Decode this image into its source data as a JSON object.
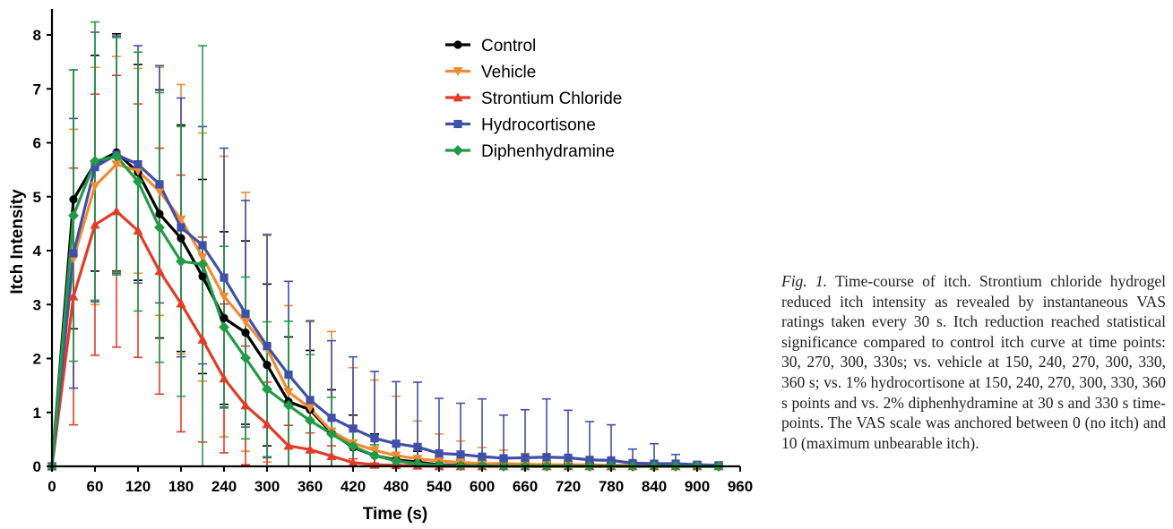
{
  "chart_data": {
    "type": "line",
    "xlabel": "Time (s)",
    "ylabel": "Itch Intensity",
    "xlim": [
      0,
      960
    ],
    "ylim": [
      0,
      8.4
    ],
    "xticks": [
      0,
      60,
      120,
      180,
      240,
      300,
      360,
      420,
      480,
      540,
      600,
      660,
      720,
      780,
      840,
      900,
      960
    ],
    "yticks": [
      0,
      1,
      2,
      3,
      4,
      5,
      6,
      7,
      8
    ],
    "grid": false,
    "legend_position": "top-center",
    "x": [
      0,
      30,
      60,
      90,
      120,
      150,
      180,
      210,
      240,
      270,
      300,
      330,
      360,
      390,
      420,
      450,
      480,
      510,
      540,
      570,
      600,
      630,
      660,
      690,
      720,
      750,
      780,
      810,
      840,
      870,
      900,
      930
    ],
    "series": [
      {
        "name": "Control",
        "color": "#000000",
        "marker": "circle",
        "values": [
          0,
          4.95,
          5.62,
          5.82,
          5.45,
          4.68,
          4.23,
          3.52,
          2.75,
          2.48,
          1.88,
          1.2,
          1.05,
          0.62,
          0.35,
          0.2,
          0.12,
          0.08,
          0.03,
          0.02,
          0.02,
          0.01,
          0.01,
          0.01,
          0.01,
          0.01,
          0.01,
          0.01,
          0.01,
          0.01,
          0,
          0
        ],
        "error": [
          0,
          2.4,
          2.0,
          2.2,
          2.0,
          2.3,
          2.1,
          1.8,
          1.6,
          1.7,
          1.5,
          1.2,
          1.1,
          0.8,
          0.6,
          0.4,
          0.3,
          0.2,
          0.12,
          0.1,
          0.08,
          0.06,
          0.05,
          0.05,
          0.05,
          0.05,
          0.05,
          0.05,
          0.05,
          0.05,
          0,
          0
        ]
      },
      {
        "name": "Vehicle",
        "color": "#F08C32",
        "marker": "triangle-down",
        "values": [
          0,
          3.85,
          5.2,
          5.6,
          5.48,
          5.1,
          4.58,
          3.88,
          3.15,
          2.68,
          2.18,
          1.38,
          1.08,
          0.65,
          0.43,
          0.3,
          0.2,
          0.14,
          0.1,
          0.07,
          0.05,
          0.05,
          0.04,
          0.03,
          0.03,
          0.03,
          0.02,
          0.02,
          0.02,
          0.01,
          0.01,
          0
        ],
        "error": [
          0,
          2.4,
          2.2,
          2.0,
          1.9,
          2.3,
          2.5,
          2.3,
          2.6,
          2.4,
          2.1,
          1.6,
          1.6,
          1.85,
          1.4,
          1.3,
          1.1,
          0.7,
          0.5,
          0.4,
          0.3,
          0.25,
          0.2,
          0.2,
          0.15,
          0.1,
          0.1,
          0.08,
          0.06,
          0.05,
          0.05,
          0
        ]
      },
      {
        "name": "Strontium Chloride",
        "color": "#E23C28",
        "marker": "triangle-up",
        "values": [
          0,
          3.15,
          4.48,
          4.73,
          4.37,
          3.62,
          3.02,
          2.35,
          1.63,
          1.13,
          0.78,
          0.38,
          0.31,
          0.19,
          0.07,
          0.03,
          0.02,
          0.01,
          0,
          0,
          0,
          0,
          0,
          0,
          0,
          0,
          0,
          0,
          0,
          0,
          0,
          0
        ],
        "error": [
          0,
          2.38,
          2.42,
          2.52,
          2.35,
          2.28,
          2.38,
          1.9,
          1.38,
          1.1,
          0.78,
          0.38,
          0.31,
          0.19,
          0.07,
          0.03,
          0.02,
          0.01,
          0,
          0,
          0,
          0,
          0,
          0,
          0,
          0,
          0,
          0,
          0,
          0,
          0,
          0
        ]
      },
      {
        "name": "Hydrocortisone",
        "color": "#4050A8",
        "marker": "square",
        "values": [
          0,
          3.95,
          5.55,
          5.78,
          5.6,
          5.23,
          4.43,
          4.1,
          3.5,
          2.83,
          2.23,
          1.7,
          1.23,
          0.9,
          0.7,
          0.52,
          0.42,
          0.36,
          0.24,
          0.22,
          0.18,
          0.15,
          0.16,
          0.17,
          0.16,
          0.12,
          0.11,
          0.06,
          0.05,
          0.05,
          0.03,
          0.02
        ],
        "error": [
          0,
          2.5,
          2.5,
          2.2,
          2.2,
          2.2,
          2.4,
          2.2,
          2.4,
          2.1,
          2.07,
          1.73,
          1.47,
          1.43,
          1.33,
          1.24,
          1.15,
          1.2,
          1.02,
          0.95,
          1.07,
          0.8,
          0.89,
          1.08,
          0.88,
          0.71,
          0.66,
          0.26,
          0.37,
          0.17,
          0.05,
          0.02
        ]
      },
      {
        "name": "Diphenhydramine",
        "color": "#239B46",
        "marker": "diamond",
        "values": [
          0,
          4.65,
          5.66,
          5.75,
          5.28,
          4.43,
          3.8,
          3.75,
          2.58,
          2.01,
          1.43,
          1.13,
          0.85,
          0.6,
          0.37,
          0.2,
          0.1,
          0.05,
          0.02,
          0.01,
          0.01,
          0,
          0,
          0,
          0,
          0,
          0,
          0,
          0,
          0,
          0,
          0
        ],
        "error": [
          0,
          2.7,
          2.58,
          2.2,
          2.4,
          2.5,
          2.5,
          4.05,
          1.5,
          1.5,
          1.25,
          1.56,
          1.22,
          0.68,
          0.37,
          0.2,
          0.1,
          0.05,
          0.02,
          0.01,
          0.01,
          0,
          0,
          0,
          0,
          0,
          0,
          0,
          0,
          0,
          0,
          0
        ]
      }
    ]
  },
  "caption": {
    "label": "Fig. 1.",
    "text": " Time-course of itch. Strontium chloride hydrogel reduced itch intensity as revealed by instantaneous VAS ratings taken every 30 s. Itch reduction reached statistical significance compared to control itch curve at time points: 30, 270, 300, 330s; vs. vehicle at 150, 240, 270, 300, 330, 360 s; vs. 1% hydrocortisone at 150, 240, 270, 300, 330, 360 s points and vs. 2% diphenhydramine at 30 s and 330 s time-points. The VAS scale was anchored between 0 (no itch) and 10 (maximum unbearable itch)."
  }
}
